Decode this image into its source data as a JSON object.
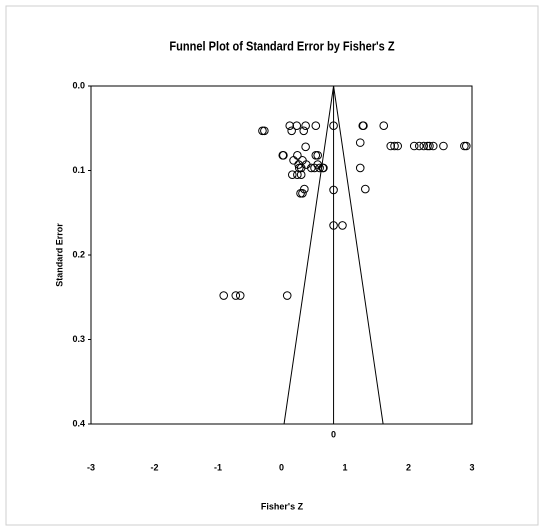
{
  "chart_data": {
    "type": "scatter",
    "title": "Funnel Plot of Standard Error by Fisher's Z",
    "x_label": "Fisher's Z",
    "y_label": "Standard Error",
    "annotation": "0",
    "xlim": [
      -3,
      3
    ],
    "xticks": [
      -3,
      -2,
      -1,
      0,
      1,
      2,
      3
    ],
    "ylim": [
      0,
      0.4
    ],
    "y_inverted": true,
    "yticks": [
      {
        "value": 0,
        "label": "0.0"
      },
      0.1,
      0.2,
      0.3,
      0.4
    ],
    "color": "#000000",
    "funnel": {
      "center": 0.82,
      "lower": 0.04,
      "upper": 1.6
    },
    "x": [
      0.13,
      0.24,
      0.38,
      0.54,
      0.82,
      1.28,
      1.29,
      1.61,
      -0.3,
      -0.27,
      0.16,
      0.35,
      1.24,
      0.38,
      1.72,
      1.78,
      1.83,
      2.09,
      2.17,
      2.24,
      2.3,
      2.33,
      2.39,
      2.55,
      2.88,
      2.91,
      0.02,
      0.03,
      0.25,
      0.54,
      0.57,
      0.19,
      0.33,
      0.27,
      0.39,
      0.57,
      0.28,
      0.31,
      0.47,
      0.52,
      0.6,
      0.65,
      0.66,
      1.24,
      0.17,
      0.25,
      0.31,
      0.36,
      1.32,
      0.82,
      0.3,
      0.33,
      0.82,
      0.96,
      -0.91,
      -0.72,
      -0.65,
      0.09
    ],
    "y": [
      0.047,
      0.047,
      0.047,
      0.047,
      0.047,
      0.047,
      0.047,
      0.047,
      0.053,
      0.053,
      0.053,
      0.053,
      0.067,
      0.072,
      0.071,
      0.071,
      0.071,
      0.071,
      0.071,
      0.071,
      0.071,
      0.071,
      0.071,
      0.071,
      0.071,
      0.071,
      0.082,
      0.082,
      0.082,
      0.082,
      0.082,
      0.088,
      0.088,
      0.093,
      0.093,
      0.093,
      0.097,
      0.097,
      0.097,
      0.097,
      0.097,
      0.097,
      0.097,
      0.097,
      0.105,
      0.105,
      0.105,
      0.122,
      0.122,
      0.123,
      0.127,
      0.127,
      0.165,
      0.165,
      0.248,
      0.248,
      0.248,
      0.248
    ]
  }
}
